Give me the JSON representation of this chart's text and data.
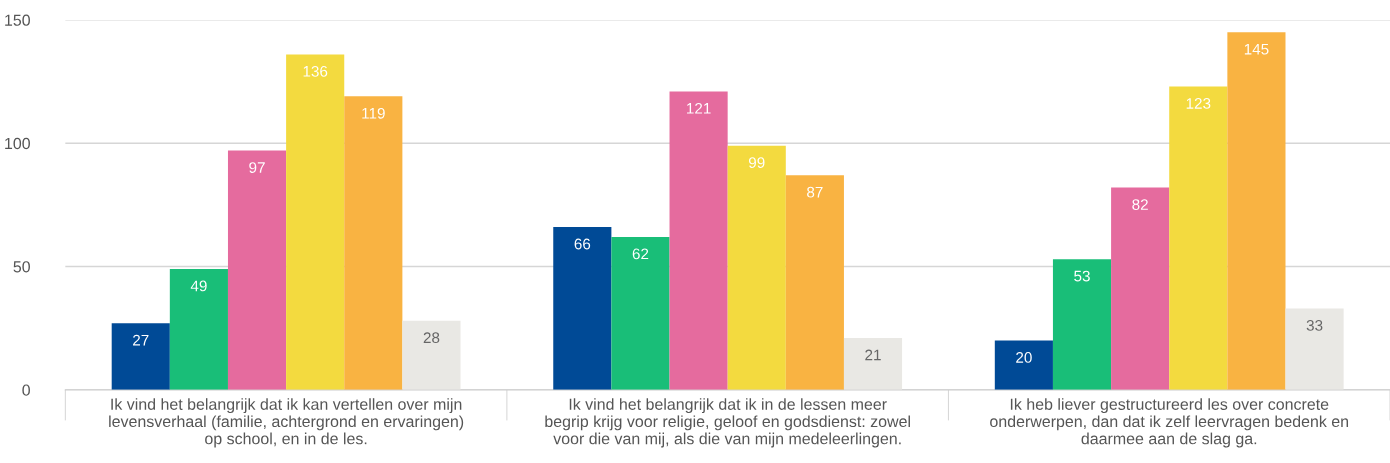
{
  "chart_data": {
    "type": "bar",
    "categories": [
      "Ik vind het belangrijk dat ik kan vertellen over mijn\nlevensverhaal (familie, achtergrond en ervaringen)\nop school, en in de les.",
      "Ik vind het belangrijk dat ik in de lessen meer\nbegrip krijg voor religie, geloof en godsdienst: zowel\nvoor die van mij, als die van mijn medeleerlingen.",
      "Ik heb liever gestructureerd les over concrete\nonderwerpen, dan dat ik zelf leervragen bedenk en\ndaarmee aan de slag ga."
    ],
    "series": [
      {
        "color": "#004a96",
        "values": [
          27,
          66,
          20
        ]
      },
      {
        "color": "#19be78",
        "values": [
          49,
          62,
          53
        ]
      },
      {
        "color": "#e56b9e",
        "values": [
          97,
          121,
          82
        ]
      },
      {
        "color": "#f3da3f",
        "values": [
          136,
          99,
          123
        ]
      },
      {
        "color": "#f9b342",
        "values": [
          119,
          87,
          145
        ]
      },
      {
        "color": "#e9e8e4",
        "values": [
          28,
          21,
          33
        ]
      }
    ],
    "ylim": [
      0,
      150
    ],
    "yticks": [
      0,
      50,
      100,
      150
    ],
    "grid": "y",
    "data_labels": true,
    "legend": false
  }
}
